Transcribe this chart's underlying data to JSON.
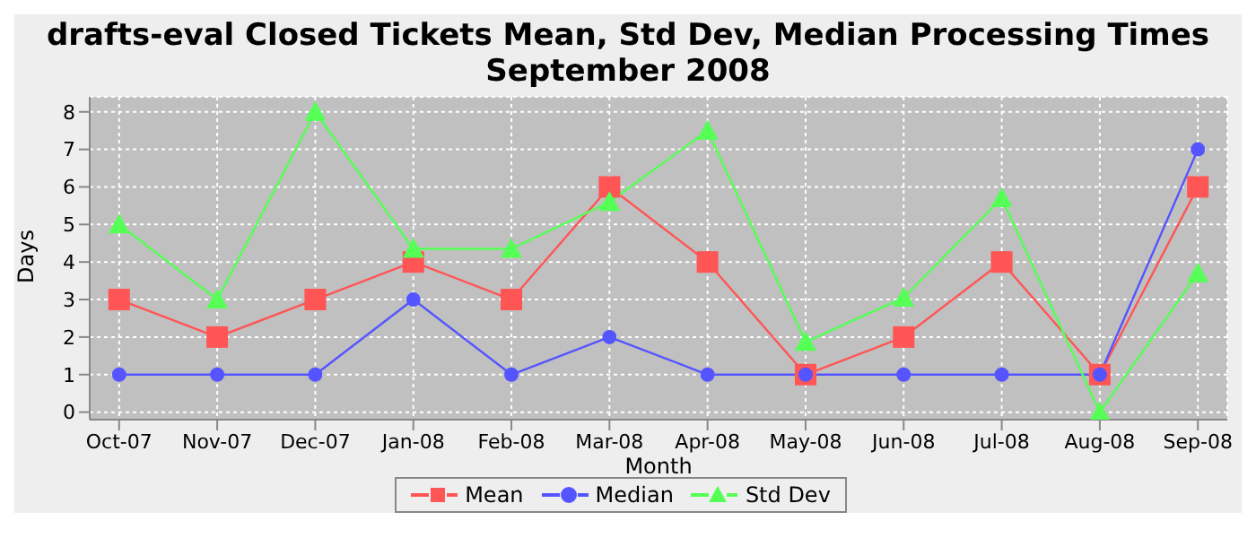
{
  "chart_data": {
    "type": "line",
    "title": "drafts-eval Closed Tickets Mean, Std Dev, Median Processing Times\nSeptember 2008",
    "xlabel": "Month",
    "ylabel": "Days",
    "categories": [
      "Oct-07",
      "Nov-07",
      "Dec-07",
      "Jan-08",
      "Feb-08",
      "Mar-08",
      "Apr-08",
      "May-08",
      "Jun-08",
      "Jul-08",
      "Aug-08",
      "Sep-08"
    ],
    "series": [
      {
        "name": "Mean",
        "color": "#ff5555",
        "marker": "square",
        "values": [
          3,
          2,
          3,
          4,
          3,
          6,
          4,
          1,
          2,
          4,
          1,
          6
        ]
      },
      {
        "name": "Median",
        "color": "#5555ff",
        "marker": "circle",
        "values": [
          1,
          1,
          1,
          3,
          1,
          2,
          1,
          1,
          1,
          1,
          1,
          7
        ]
      },
      {
        "name": "Std Dev",
        "color": "#55ff55",
        "marker": "triangle",
        "values": [
          5,
          3,
          8,
          4.35,
          4.35,
          5.6,
          7.5,
          1.87,
          3.05,
          5.7,
          0,
          3.7
        ]
      }
    ],
    "ylim": [
      -0.2,
      8.4
    ],
    "yticks": [
      0,
      1,
      2,
      3,
      4,
      5,
      6,
      7,
      8
    ],
    "grid": true,
    "legend": "bottom",
    "line_style": "solid"
  }
}
